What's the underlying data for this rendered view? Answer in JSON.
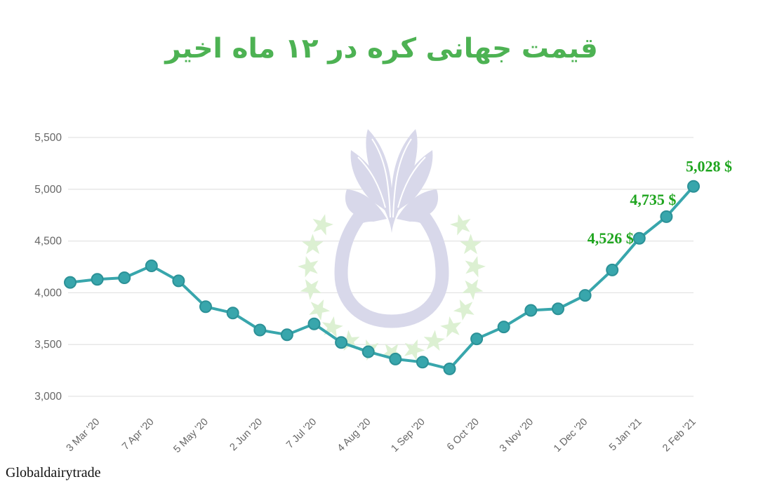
{
  "title": {
    "text": "قیمت جهانی کره در ۱۲ ماه اخیر",
    "color": "#4db253"
  },
  "footer": {
    "source_label": "Globaldairytrade"
  },
  "watermark": {
    "description": "global-dairy-trade-tulip-logo-with-star-ring",
    "tulip_color": "#d8d8ea",
    "star_color": "#dcf0d2"
  },
  "colors": {
    "background": "#ffffff",
    "line": "#38a6ac",
    "marker_fill": "#38a6ac",
    "marker_stroke": "#2c9197",
    "grid": "#e4e4e4",
    "tick_text": "#666666",
    "annotation_green": "#1fa51f"
  },
  "chart_data": {
    "type": "line",
    "title": "قیمت جهانی کره در ۱۲ ماه اخیر",
    "xlabel": "",
    "ylabel": "",
    "ylim": [
      3000,
      5500
    ],
    "grid": "horizontal",
    "legend": "none",
    "y_ticks": [
      {
        "value": 5500,
        "label": "5,500"
      },
      {
        "value": 5000,
        "label": "5,000"
      },
      {
        "value": 4500,
        "label": "4,500"
      },
      {
        "value": 4000,
        "label": "4,000"
      },
      {
        "value": 3500,
        "label": "3,500"
      },
      {
        "value": 3000,
        "label": "3,000"
      }
    ],
    "values": [
      4100,
      4130,
      4145,
      4260,
      4115,
      3865,
      3805,
      3640,
      3595,
      3700,
      3520,
      3430,
      3360,
      3330,
      3265,
      3555,
      3670,
      3830,
      3845,
      3975,
      4220,
      4526,
      4735,
      5028
    ],
    "x_tick_labels": [
      "3 Mar '20",
      "7 Apr '20",
      "5 May '20",
      "2 Jun '20",
      "7 Jul '20",
      "4 Aug '20",
      "1 Sep '20",
      "6 Oct '20",
      "3 Nov '20",
      "1 Dec '20",
      "5 Jan '21",
      "2 Feb '21"
    ],
    "x_tick_point_indices": [
      1,
      3,
      5,
      7,
      9,
      11,
      13,
      15,
      17,
      19,
      21,
      23
    ],
    "annotations": [
      {
        "text": "4,526 $",
        "point_index": 21
      },
      {
        "text": "4,735 $",
        "point_index": 22
      },
      {
        "text": "5,028 $",
        "point_index": 23
      }
    ]
  }
}
